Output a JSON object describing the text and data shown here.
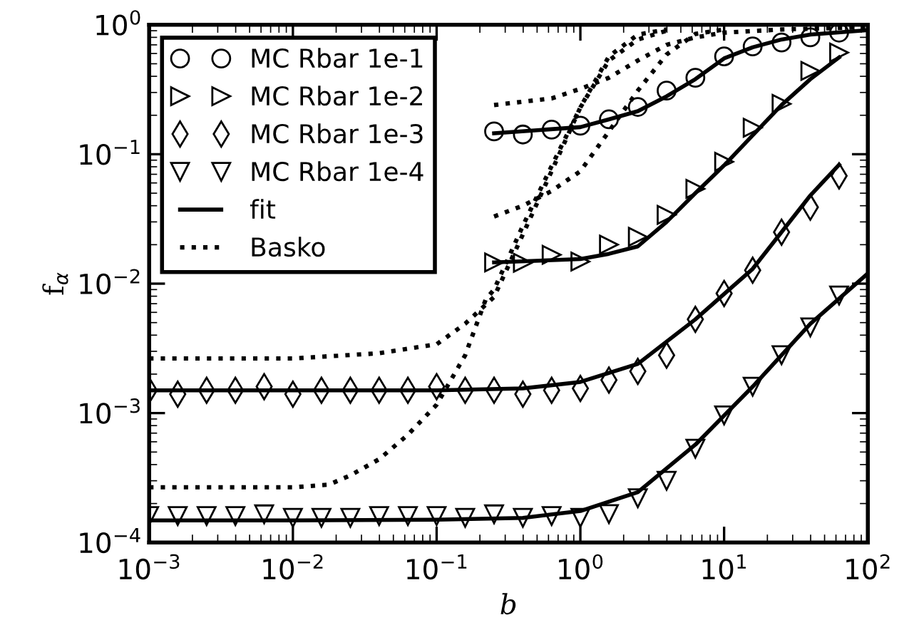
{
  "chart_data": {
    "type": "line",
    "xlabel": "b",
    "ylabel": "f$_{α}$",
    "log": "xy",
    "grid": false,
    "legend": "top left",
    "xlim": [
      0.001,
      100
    ],
    "ylim": [
      0.0001,
      1
    ],
    "xticks": [
      {
        "value": 0.001,
        "label": "10$^{−3}$"
      },
      {
        "value": 0.01,
        "label": "10$^{−2}$"
      },
      {
        "value": 0.1,
        "label": "10$^{−1}$"
      },
      {
        "value": 1,
        "label": "10$^{0}$"
      },
      {
        "value": 10,
        "label": "10$^{1}$"
      },
      {
        "value": 100,
        "label": "10$^{2}$"
      }
    ],
    "yticks": [
      {
        "value": 0.0001,
        "label": "10$^{−4}$"
      },
      {
        "value": 0.001,
        "label": "10$^{−3}$"
      },
      {
        "value": 0.01,
        "label": "10$^{−2}$"
      },
      {
        "value": 0.1,
        "label": "10$^{−1}$"
      },
      {
        "value": 1,
        "label": "10$^{0}$"
      }
    ],
    "series": [
      {
        "name": "MC Rbar 1e-1",
        "type": "scatter",
        "marker": "circle",
        "color": "#000000",
        "x": [
          0.251,
          0.398,
          0.631,
          1,
          1.58,
          2.51,
          3.98,
          6.31,
          10,
          15.8,
          25.1,
          39.8,
          63.1
        ],
        "values": [
          0.15,
          0.142,
          0.155,
          0.166,
          0.186,
          0.232,
          0.31,
          0.39,
          0.57,
          0.68,
          0.73,
          0.8,
          0.87
        ]
      },
      {
        "name": "MC Rbar 1e-2",
        "type": "scatter",
        "marker": "triangle-right",
        "color": "#000000",
        "x": [
          0.251,
          0.398,
          0.631,
          1,
          1.58,
          2.51,
          3.98,
          6.31,
          10,
          15.8,
          25.1,
          39.8,
          63.1
        ],
        "values": [
          0.0146,
          0.0145,
          0.0167,
          0.0148,
          0.02,
          0.023,
          0.034,
          0.054,
          0.0875,
          0.16,
          0.245,
          0.44,
          0.61
        ]
      },
      {
        "name": "MC Rbar 1e-3",
        "type": "scatter",
        "marker": "diamond",
        "color": "#000000",
        "x": [
          0.001,
          0.00158,
          0.00251,
          0.00398,
          0.00631,
          0.01,
          0.0158,
          0.0251,
          0.0398,
          0.0631,
          0.1,
          0.158,
          0.251,
          0.398,
          0.631,
          1,
          1.58,
          2.51,
          3.98,
          6.31,
          10,
          15.8,
          25.1,
          39.8,
          63.1
        ],
        "values": [
          0.0015,
          0.0014,
          0.0015,
          0.0015,
          0.0016,
          0.0014,
          0.0015,
          0.0015,
          0.0015,
          0.0015,
          0.0016,
          0.0015,
          0.0015,
          0.0014,
          0.0015,
          0.00155,
          0.0018,
          0.0021,
          0.0028,
          0.0053,
          0.0084,
          0.0127,
          0.025,
          0.039,
          0.068
        ]
      },
      {
        "name": "MC Rbar 1e-4",
        "type": "scatter",
        "marker": "triangle-down",
        "color": "#000000",
        "x": [
          0.001,
          0.00158,
          0.00251,
          0.00398,
          0.00631,
          0.01,
          0.0158,
          0.0251,
          0.0398,
          0.0631,
          0.1,
          0.158,
          0.251,
          0.398,
          0.631,
          1,
          1.58,
          2.51,
          3.98,
          6.31,
          10,
          15.8,
          25.1,
          39.8,
          63.1
        ],
        "values": [
          0.00016,
          0.00016,
          0.00016,
          0.00016,
          0.000165,
          0.000155,
          0.000155,
          0.000155,
          0.00016,
          0.00016,
          0.00016,
          0.000155,
          0.000165,
          0.000155,
          0.00016,
          0.000155,
          0.000166,
          0.00022,
          0.0003,
          0.00053,
          0.00096,
          0.0016,
          0.0028,
          0.0046,
          0.0081
        ]
      },
      {
        "name": "fit",
        "line_style": "solid",
        "color": "#000000",
        "x": [
          0.251,
          1,
          1.58,
          2.51,
          3.98,
          6.31,
          10,
          15.8,
          25.1,
          39.8,
          100
        ],
        "values": [
          0.145,
          0.162,
          0.186,
          0.215,
          0.28,
          0.38,
          0.55,
          0.67,
          0.77,
          0.84,
          0.91
        ]
      },
      {
        "line_style": "solid",
        "color": "#000000",
        "x": [
          0.251,
          1,
          1.58,
          2.51,
          3.98,
          6.31,
          10,
          15.8,
          25.1,
          39.8,
          63.1
        ],
        "values": [
          0.0146,
          0.0155,
          0.017,
          0.0194,
          0.03,
          0.05,
          0.082,
          0.14,
          0.24,
          0.38,
          0.56
        ]
      },
      {
        "line_style": "solid",
        "color": "#000000",
        "x": [
          0.001,
          0.01,
          0.1,
          0.398,
          1,
          2.51,
          6.31,
          15.8,
          39.8,
          63.1
        ],
        "values": [
          0.0015,
          0.0015,
          0.0015,
          0.00155,
          0.00174,
          0.0024,
          0.0053,
          0.013,
          0.048,
          0.083
        ]
      },
      {
        "line_style": "solid",
        "color": "#000000",
        "x": [
          0.001,
          0.01,
          0.1,
          0.398,
          1,
          2.51,
          6.31,
          15.8,
          39.8,
          100
        ],
        "values": [
          0.000148,
          0.000148,
          0.00015,
          0.000155,
          0.000175,
          0.000245,
          0.00057,
          0.0016,
          0.0049,
          0.012
        ]
      },
      {
        "name": "Basko",
        "line_style": "dotted",
        "color": "#000000",
        "x": [
          0.251,
          0.631,
          1,
          1.58,
          2.51,
          3.98,
          6.31,
          10,
          25.1,
          100
        ],
        "values": [
          0.24,
          0.27,
          0.32,
          0.39,
          0.53,
          0.7,
          0.8,
          0.87,
          0.92,
          0.96
        ]
      },
      {
        "line_style": "dotted",
        "color": "#000000",
        "x": [
          0.251,
          0.398,
          0.631,
          1,
          1.58,
          2.51,
          3.98,
          6.31,
          10
        ],
        "values": [
          0.033,
          0.04,
          0.052,
          0.074,
          0.15,
          0.31,
          0.59,
          0.85,
          0.92
        ]
      },
      {
        "line_style": "dotted",
        "color": "#000000",
        "x": [
          0.001,
          0.01,
          0.0398,
          0.1,
          0.158,
          0.251,
          0.398,
          0.631,
          1,
          1.58,
          2.51,
          3.98
        ],
        "values": [
          0.00264,
          0.00264,
          0.0029,
          0.0034,
          0.0049,
          0.0079,
          0.024,
          0.074,
          0.23,
          0.57,
          0.84,
          0.92
        ]
      },
      {
        "line_style": "dotted",
        "color": "#000000",
        "x": [
          0.001,
          0.01,
          0.0178,
          0.0251,
          0.0398,
          0.0631,
          0.1,
          0.158,
          0.22,
          0.251,
          0.398,
          0.631,
          1,
          1.58,
          2.51,
          3.98
        ],
        "values": [
          0.000267,
          0.000267,
          0.00028,
          0.00033,
          0.00044,
          0.00068,
          0.00116,
          0.0028,
          0.0076,
          0.009,
          0.028,
          0.081,
          0.23,
          0.53,
          0.77,
          0.9
        ]
      }
    ]
  }
}
